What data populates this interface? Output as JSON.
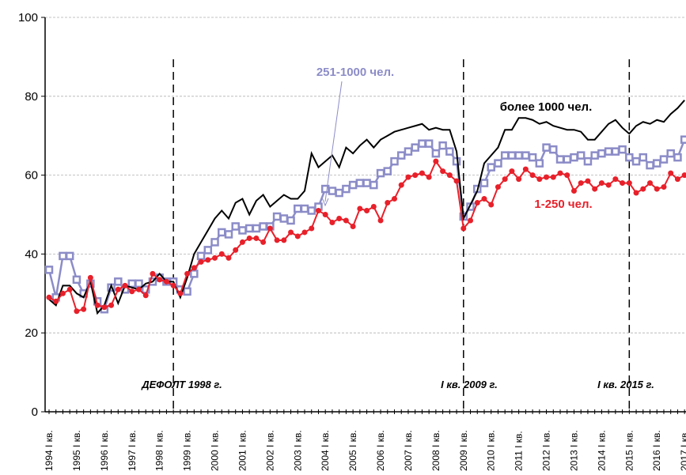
{
  "chart_data": {
    "type": "line",
    "categories": [
      "1994 I кв.",
      null,
      null,
      null,
      "1995 I кв.",
      null,
      null,
      null,
      "1996 I кв.",
      null,
      null,
      null,
      "1997 I кв.",
      null,
      null,
      null,
      "1998 I кв.",
      null,
      null,
      null,
      "1999 I кв.",
      null,
      null,
      null,
      "2000 I кв.",
      null,
      null,
      null,
      "2001 I кв.",
      null,
      null,
      null,
      "2002 I кв.",
      null,
      null,
      null,
      "2003 I кв.",
      null,
      null,
      null,
      "2004 I кв.",
      null,
      null,
      null,
      "2005 I кв.",
      null,
      null,
      null,
      "2006 I кв.",
      null,
      null,
      null,
      "2007 I кв.",
      null,
      null,
      null,
      "2008 I кв.",
      null,
      null,
      null,
      "2009 I кв.",
      null,
      null,
      null,
      "2010 I кв.",
      null,
      null,
      null,
      "2011 I кв.",
      null,
      null,
      null,
      "2012 I кв.",
      null,
      null,
      null,
      "2013 I кв.",
      null,
      null,
      null,
      "2014 I кв.",
      null,
      null,
      null,
      "2015 I кв.",
      null,
      null,
      null,
      "2016 I кв.",
      null,
      null,
      null,
      "2017 I кв."
    ],
    "series": [
      {
        "name": "251-1000 чел.",
        "color": "#8c8cc8",
        "marker": "square",
        "values": [
          36,
          29,
          39.5,
          39.5,
          33.5,
          30,
          32.5,
          28,
          26,
          31.5,
          33,
          31,
          32.5,
          32.5,
          31,
          33,
          34,
          33,
          33,
          31,
          30.5,
          35,
          39.5,
          41,
          43,
          45.5,
          45,
          47,
          46,
          46.5,
          46.5,
          47,
          47,
          49.5,
          49,
          48.5,
          51.5,
          51.5,
          51,
          52,
          56.5,
          56,
          55.5,
          56.5,
          57.5,
          58,
          58,
          57.5,
          60.5,
          61,
          63.5,
          65,
          66,
          67,
          68,
          68,
          65.5,
          67.5,
          66,
          63.5,
          49.5,
          52,
          56.5,
          58,
          62,
          63,
          65,
          65,
          65,
          65,
          64.5,
          63,
          67,
          66.5,
          64,
          64,
          64.5,
          65,
          63.5,
          65,
          65.5,
          66,
          66,
          66.5,
          64.5,
          63.5,
          64.5,
          62.5,
          63,
          64,
          65.5,
          64.5,
          69
        ]
      },
      {
        "name": "более 1000 чел.",
        "color": "#000000",
        "marker": "none",
        "values": [
          28.5,
          27,
          32,
          32,
          30,
          29,
          33,
          25,
          27,
          32,
          27.5,
          32,
          31.5,
          31,
          32.5,
          33,
          35,
          33,
          33,
          29,
          34,
          40,
          43,
          46,
          49,
          51,
          49,
          53,
          54,
          50,
          53.5,
          55,
          52,
          53.5,
          55,
          54,
          54,
          56,
          65.5,
          62,
          63.5,
          65,
          62,
          67,
          65.5,
          67.5,
          69,
          67,
          69,
          70,
          71,
          71.5,
          72,
          72.5,
          73,
          71.5,
          72,
          71.5,
          71.5,
          66,
          49,
          52.5,
          56,
          63,
          65,
          67,
          71.5,
          71.5,
          74.5,
          74.5,
          74,
          73,
          73.5,
          72.5,
          72,
          71.5,
          71.5,
          71,
          69,
          69,
          71,
          73,
          74,
          72,
          70.5,
          72.5,
          73.5,
          73,
          74,
          73.5,
          75.5,
          77,
          79
        ]
      },
      {
        "name": "1-250 чел.",
        "color": "#e8202a",
        "marker": "circle",
        "values": [
          29,
          28,
          30,
          31,
          25.5,
          26,
          34,
          27,
          26.5,
          27,
          31,
          32,
          30.5,
          31,
          29.5,
          35,
          33.5,
          33,
          32,
          30,
          35,
          36.5,
          38,
          38.5,
          39,
          40,
          39,
          41,
          43,
          44,
          44,
          43,
          46.5,
          43.5,
          43.5,
          45.5,
          44.5,
          45.5,
          46.5,
          51,
          50,
          48,
          49,
          48.5,
          47,
          51.5,
          51,
          52,
          48.5,
          53,
          54,
          57.5,
          59.5,
          60,
          60.5,
          59.5,
          63.5,
          61,
          60,
          58.5,
          46.5,
          48.5,
          53,
          54,
          52.5,
          57,
          59,
          61,
          59,
          61.5,
          60,
          59,
          59.5,
          59.5,
          60.5,
          60,
          56,
          58,
          58.5,
          56.5,
          58,
          57.5,
          59,
          58,
          58,
          55.5,
          56.5,
          58,
          56.5,
          57,
          60.5,
          59,
          60
        ]
      }
    ],
    "annotations": [
      "ДЕФОЛТ 1998 г.",
      "I кв. 2009 г.",
      "I кв. 2015 г."
    ],
    "ylim": [
      0,
      100
    ],
    "yticks": [
      0,
      20,
      40,
      60,
      80,
      100
    ],
    "grid": true
  }
}
